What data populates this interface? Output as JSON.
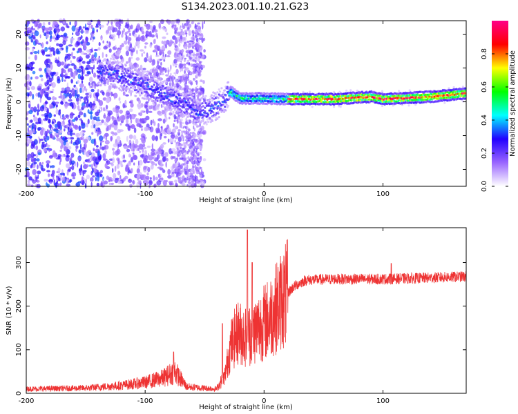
{
  "title": "S134.2023.001.10.21.G23",
  "chart_data": [
    {
      "type": "heatmap",
      "xlabel": "Height of straight line (km)",
      "ylabel": "Frequency (Hz)",
      "xlim": [
        -200,
        170
      ],
      "ylim": [
        -25,
        24
      ],
      "xticks": [
        -200,
        -100,
        0,
        100
      ],
      "yticks": [
        -20,
        -10,
        0,
        10,
        20
      ],
      "colorbar": {
        "label": "Normalized spectral amplitude",
        "range": [
          0,
          1
        ],
        "ticks": [
          0.0,
          0.2,
          0.4,
          0.6,
          0.8
        ],
        "colors": [
          "#ffffff",
          "#9a66ff",
          "#2200ff",
          "#00ffff",
          "#00ff00",
          "#ffff00",
          "#ff0000",
          "#ff0088"
        ]
      },
      "ridge": [
        {
          "x": -130,
          "f": 9
        },
        {
          "x": -115,
          "f": 7
        },
        {
          "x": -100,
          "f": 5
        },
        {
          "x": -85,
          "f": 2
        },
        {
          "x": -70,
          "f": 0
        },
        {
          "x": -55,
          "f": -3
        },
        {
          "x": -45,
          "f": -2
        },
        {
          "x": -35,
          "f": 0
        },
        {
          "x": -28,
          "f": 3
        },
        {
          "x": -20,
          "f": 1
        },
        {
          "x": 0,
          "f": 1
        },
        {
          "x": 20,
          "f": 0.8
        },
        {
          "x": 60,
          "f": 0.8
        },
        {
          "x": 90,
          "f": 1.5
        },
        {
          "x": 100,
          "f": 0.8
        },
        {
          "x": 140,
          "f": 1.5
        },
        {
          "x": 170,
          "f": 2.5
        }
      ]
    },
    {
      "type": "line",
      "xlabel": "Height of straight line (km)",
      "ylabel": "SNR (10 * v/v)",
      "xlim": [
        -200,
        170
      ],
      "ylim": [
        0,
        380
      ],
      "xticks": [
        -200,
        -100,
        0,
        100
      ],
      "yticks": [
        0,
        100,
        200,
        300
      ],
      "series_color": "#ee3333",
      "envelope": [
        {
          "x": -200,
          "y": 10
        },
        {
          "x": -150,
          "y": 12
        },
        {
          "x": -120,
          "y": 18
        },
        {
          "x": -100,
          "y": 25
        },
        {
          "x": -85,
          "y": 35
        },
        {
          "x": -75,
          "y": 50
        },
        {
          "x": -65,
          "y": 15
        },
        {
          "x": -40,
          "y": 10
        },
        {
          "x": -33,
          "y": 40
        },
        {
          "x": -28,
          "y": 110
        },
        {
          "x": -22,
          "y": 140
        },
        {
          "x": -15,
          "y": 130
        },
        {
          "x": -5,
          "y": 150
        },
        {
          "x": 5,
          "y": 175
        },
        {
          "x": 15,
          "y": 215
        },
        {
          "x": 25,
          "y": 245
        },
        {
          "x": 35,
          "y": 260
        },
        {
          "x": 60,
          "y": 262
        },
        {
          "x": 100,
          "y": 262
        },
        {
          "x": 140,
          "y": 265
        },
        {
          "x": 170,
          "y": 268
        }
      ],
      "peaks": [
        {
          "x": -76,
          "y": 95
        },
        {
          "x": -35,
          "y": 160
        },
        {
          "x": -14,
          "y": 375
        },
        {
          "x": -10,
          "y": 300
        },
        {
          "x": 107,
          "y": 298
        }
      ]
    }
  ]
}
